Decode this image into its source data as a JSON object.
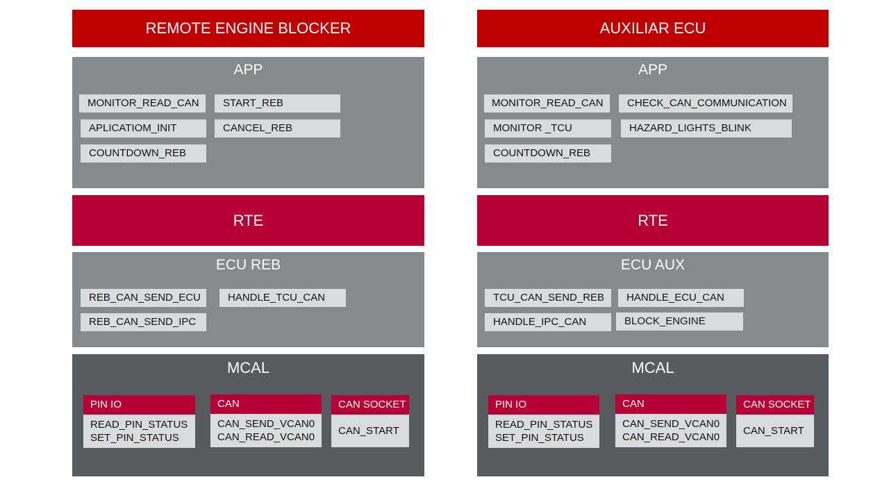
{
  "left": {
    "title": "REMOTE ENGINE BLOCKER",
    "app": {
      "title": "APP",
      "items": [
        "MONITOR_READ_CAN",
        "START_REB",
        "APLICATIOM_INIT",
        "CANCEL_REB",
        "COUNTDOWN_REB"
      ]
    },
    "rte": "RTE",
    "ecu": {
      "title": "ECU REB",
      "items": [
        "REB_CAN_SEND_ECU",
        "HANDLE_TCU_CAN",
        "REB_CAN_SEND_IPC"
      ]
    },
    "mcal": {
      "title": "MCAL",
      "modules": [
        {
          "name": "PIN IO",
          "lines": [
            "READ_PIN_STATUS",
            "SET_PIN_STATUS"
          ]
        },
        {
          "name": "CAN",
          "lines": [
            "CAN_SEND_VCAN0",
            "CAN_READ_VCAN0"
          ]
        },
        {
          "name": "CAN SOCKET",
          "lines": [
            "CAN_START"
          ]
        }
      ]
    }
  },
  "right": {
    "title": "AUXILIAR ECU",
    "app": {
      "title": "APP",
      "items": [
        "MONITOR_READ_CAN",
        "CHECK_CAN_COMMUNICATION",
        "MONITOR _TCU",
        "HAZARD_LIGHTS_BLINK",
        "COUNTDOWN_REB"
      ]
    },
    "rte": "RTE",
    "ecu": {
      "title": "ECU AUX",
      "items": [
        "TCU_CAN_SEND_REB",
        "HANDLE_ECU_CAN",
        "HANDLE_IPC_CAN",
        "BLOCK_ENGINE"
      ]
    },
    "mcal": {
      "title": "MCAL",
      "modules": [
        {
          "name": "PIN IO",
          "lines": [
            "READ_PIN_STATUS",
            "SET_PIN_STATUS"
          ]
        },
        {
          "name": "CAN",
          "lines": [
            "CAN_SEND_VCAN0",
            "CAN_READ_VCAN0"
          ]
        },
        {
          "name": "CAN SOCKET",
          "lines": [
            "CAN_START"
          ]
        }
      ]
    }
  }
}
